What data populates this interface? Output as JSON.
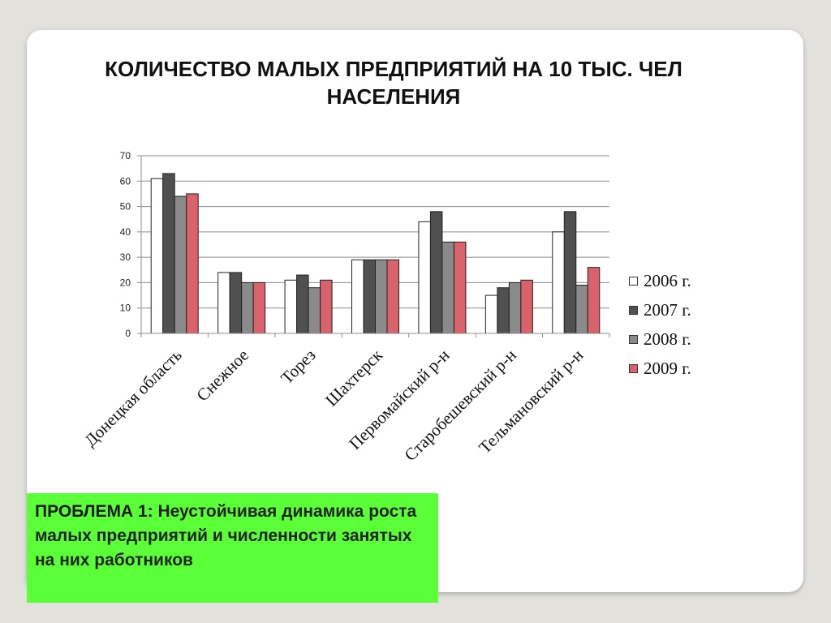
{
  "title_line1": "КОЛИЧЕСТВО МАЛЫХ ПРЕДПРИЯТИЙ НА 10 ТЫС. ЧЕЛ",
  "title_line2": "НАСЕЛЕНИЯ",
  "callout": {
    "lead": "ПРОБЛЕМА 1:",
    "text": " Неустойчивая динамика роста малых предприятий и численности занятых на них работников"
  },
  "chart_data": {
    "type": "bar",
    "categories": [
      "Донецкая область",
      "Снежное",
      "Торез",
      "Шахтерск",
      "Первомайский р-н",
      "Старобешевский р-н",
      "Тельмановский р-н"
    ],
    "series": [
      {
        "name": "2006 г.",
        "color": "#ffffff",
        "values": [
          61,
          24,
          21,
          29,
          44,
          15,
          40
        ]
      },
      {
        "name": "2007 г.",
        "color": "#505050",
        "values": [
          63,
          24,
          23,
          29,
          48,
          18,
          48
        ]
      },
      {
        "name": "2008 г.",
        "color": "#8a8a8a",
        "values": [
          54,
          20,
          18,
          29,
          36,
          20,
          19
        ]
      },
      {
        "name": "2009 г.",
        "color": "#d9626b",
        "values": [
          55,
          20,
          21,
          29,
          36,
          21,
          26
        ]
      }
    ],
    "ylim": [
      0,
      70
    ],
    "yticks": [
      0,
      10,
      20,
      30,
      40,
      50,
      60,
      70
    ],
    "grid": true,
    "legend": "right"
  }
}
